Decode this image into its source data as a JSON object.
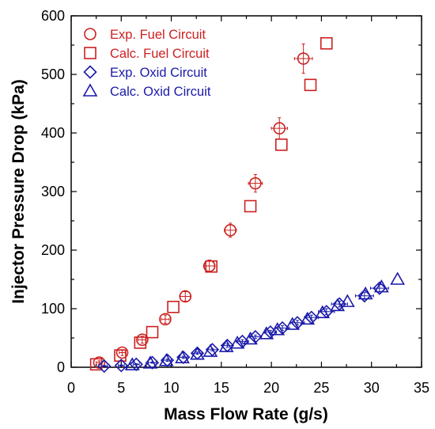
{
  "chart_data": {
    "type": "scatter",
    "title": "",
    "xlabel": "Mass Flow Rate (g/s)",
    "ylabel": "Injector Pressure Drop (kPa)",
    "xlim": [
      0,
      35
    ],
    "ylim": [
      0,
      600
    ],
    "xticks": [
      "0",
      "5",
      "10",
      "15",
      "20",
      "25",
      "30",
      "35"
    ],
    "yticks": [
      "0",
      "100",
      "200",
      "300",
      "400",
      "500",
      "600"
    ],
    "grid": false,
    "legend_position": "top-left",
    "colors": {
      "fuel": "#cc2020",
      "oxid": "#1a1aaa"
    },
    "series": [
      {
        "name": "Exp. Fuel Circuit",
        "marker": "circle-errorbars",
        "color": "#cc2020",
        "x": [
          2.8,
          5.1,
          7.1,
          9.4,
          11.4,
          13.8,
          15.9,
          18.4,
          20.8,
          23.2
        ],
        "y": [
          8,
          25,
          47,
          82,
          121,
          173,
          234,
          314,
          408,
          527
        ],
        "xerr": [
          0.3,
          0.3,
          0.4,
          0.4,
          0.5,
          0.5,
          0.6,
          0.7,
          0.8,
          0.9
        ],
        "yerr": [
          3,
          5,
          6,
          7,
          8,
          10,
          12,
          15,
          18,
          25
        ]
      },
      {
        "name": "Calc. Fuel Circuit",
        "marker": "square",
        "color": "#cc2020",
        "x": [
          2.5,
          4.9,
          6.9,
          8.1,
          10.2,
          14.0,
          17.9,
          21.0,
          23.9,
          25.5
        ],
        "y": [
          5,
          20,
          42,
          60,
          103,
          172,
          275,
          380,
          482,
          553
        ]
      },
      {
        "name": "Exp. Oxid Circuit",
        "marker": "diamond-errorbars",
        "color": "#1a1aaa",
        "x": [
          3.3,
          5.0,
          6.5,
          8.1,
          9.6,
          11.2,
          12.6,
          14.1,
          15.6,
          17.1,
          18.4,
          19.9,
          21.1,
          22.6,
          24.0,
          25.5,
          26.8,
          29.3,
          30.8
        ],
        "y": [
          2,
          3,
          5,
          8,
          12,
          17,
          24,
          30,
          37,
          44,
          52,
          60,
          67,
          76,
          85,
          95,
          108,
          122,
          135
        ],
        "xerr": [
          0.3,
          0.3,
          0.3,
          0.4,
          0.4,
          0.4,
          0.5,
          0.5,
          0.5,
          0.6,
          0.6,
          0.6,
          0.7,
          0.7,
          0.7,
          0.8,
          0.8,
          0.9,
          0.9
        ],
        "yerr": [
          1,
          1,
          1,
          1,
          2,
          2,
          2,
          2,
          3,
          3,
          3,
          3,
          4,
          4,
          4,
          5,
          5,
          6,
          6
        ]
      },
      {
        "name": "Calc. Oxid Circuit",
        "marker": "triangle",
        "color": "#1a1aaa",
        "x": [
          6.1,
          7.9,
          9.5,
          11.1,
          12.6,
          13.9,
          15.5,
          16.6,
          17.9,
          19.5,
          20.6,
          22.1,
          23.6,
          25.1,
          26.6,
          27.6,
          29.4,
          31.0,
          32.6
        ],
        "y": [
          4,
          7,
          11,
          16,
          22,
          27,
          35,
          41,
          48,
          57,
          64,
          73,
          82,
          93,
          105,
          112,
          125,
          137,
          150
        ]
      }
    ]
  }
}
